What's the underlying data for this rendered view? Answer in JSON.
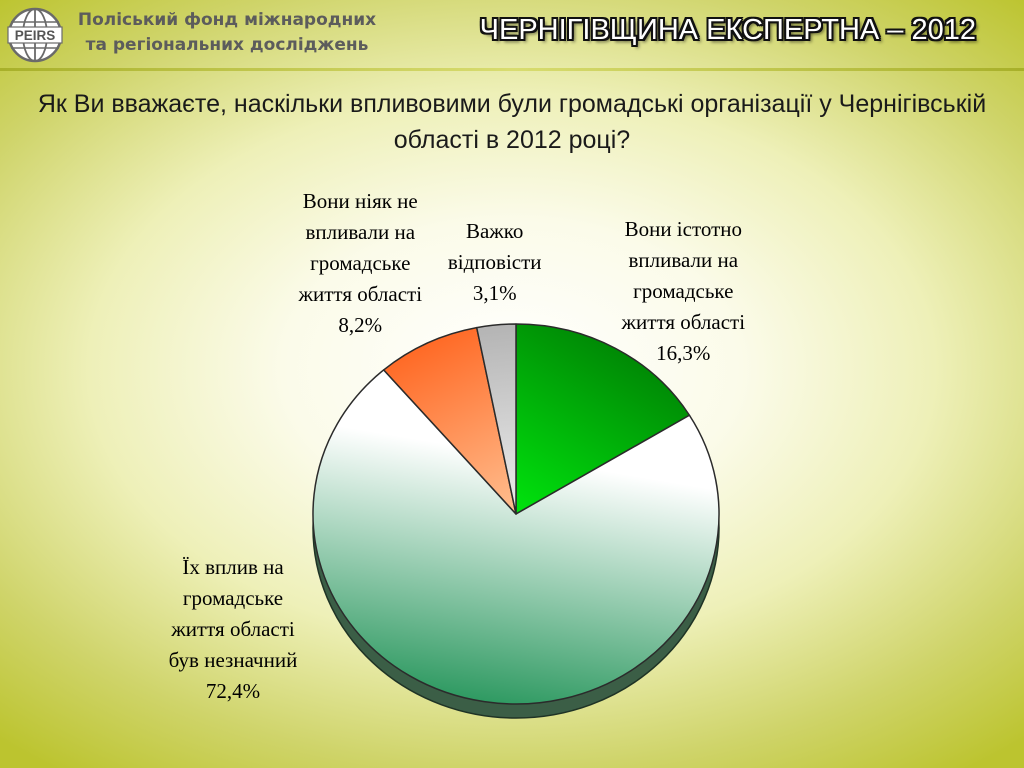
{
  "header": {
    "org_line1": "Поліський фонд міжнародних",
    "org_line2": "та регіональних досліджень",
    "logo_text": "PEIRS",
    "title": "ЧЕРНІГІВЩИНА ЕКСПЕРТНА – 2012"
  },
  "colors": {
    "accent": "#bcc42f",
    "header_title": "#ffffff",
    "org_text": "#5c5c5c"
  },
  "chart_data": {
    "type": "pie",
    "title": "Як Ви вважаєте, наскільки впливовими були громадські організації у Чернігівській області в 2012 році?",
    "slices": [
      {
        "label_lines": [
          "Вони істотно",
          "впливали на",
          "громадське",
          "життя області"
        ],
        "display": "16,3%",
        "value": 16.3,
        "color_light": "#00ff10",
        "color_dark": "#008a05"
      },
      {
        "label_lines": [
          "Їх вплив на",
          "громадське",
          "життя області",
          "був незначний"
        ],
        "display": "72,4%",
        "value": 72.4,
        "color_light": "#ffffff",
        "color_dark": "#2f9a62"
      },
      {
        "label_lines": [
          "Вони ніяк не",
          "впливали на",
          "громадське",
          "життя області"
        ],
        "display": "8,2%",
        "value": 8.2,
        "color_light": "#ffd9b0",
        "color_dark": "#ff6a26"
      },
      {
        "label_lines": [
          "Важко",
          "відповісти"
        ],
        "display": "3,1%",
        "value": 3.1,
        "color_light": "#ffffff",
        "color_dark": "#b4b4b4"
      }
    ]
  }
}
